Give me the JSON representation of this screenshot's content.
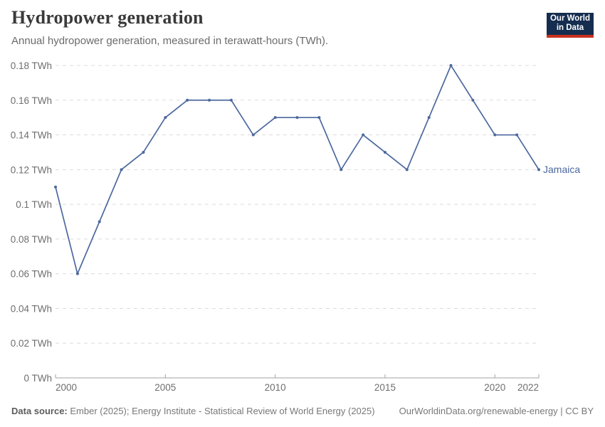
{
  "header": {
    "title": "Hydropower generation",
    "subtitle": "Annual hydropower generation, measured in terawatt-hours (TWh)."
  },
  "logo": {
    "line1": "Our World",
    "line2": "in Data",
    "bg_color": "#152D4E",
    "accent_color": "#C9321F"
  },
  "footer": {
    "datasource_label": "Data source:",
    "datasource_text": " Ember (2025); Energy Institute - Statistical Review of World Energy (2025)",
    "attribution_link": "OurWorldinData.org/renewable-energy",
    "separator": " | ",
    "license": "CC BY"
  },
  "colors": {
    "line": "#4C689E",
    "gridline": "#dcdcdc",
    "axis": "#a3a3a3",
    "axis_text": "#6e6e6e"
  },
  "chart_data": {
    "type": "line",
    "title": "Hydropower generation",
    "subtitle": "Annual hydropower generation, measured in terawatt-hours (TWh).",
    "unit": "TWh",
    "grid": true,
    "legend_position": "end-of-line-label",
    "x": [
      2000,
      2001,
      2002,
      2003,
      2004,
      2005,
      2006,
      2007,
      2008,
      2009,
      2010,
      2011,
      2012,
      2013,
      2014,
      2015,
      2016,
      2017,
      2018,
      2019,
      2020,
      2021,
      2022
    ],
    "series": [
      {
        "name": "Jamaica",
        "values": [
          0.11,
          0.06,
          0.09,
          0.12,
          0.13,
          0.15,
          0.16,
          0.16,
          0.16,
          0.14,
          0.15,
          0.15,
          0.15,
          0.12,
          0.14,
          0.13,
          0.12,
          0.15,
          0.18,
          0.16,
          0.14,
          0.14,
          0.12
        ]
      }
    ],
    "xlabel": "",
    "ylabel": "",
    "ylim": [
      0,
      0.18
    ],
    "ytick_step": 0.02,
    "xticks": [
      2000,
      2005,
      2010,
      2015,
      2020,
      2022
    ],
    "line_color": "#4C689E"
  }
}
